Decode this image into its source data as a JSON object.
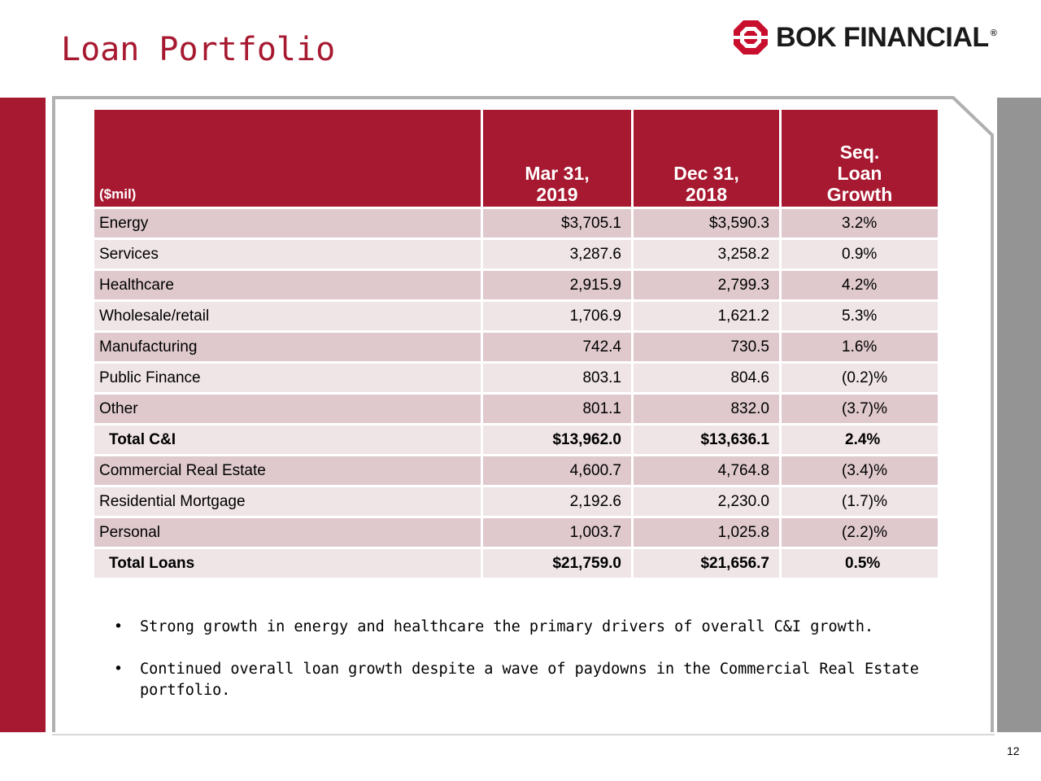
{
  "header": {
    "title": "Loan Portfolio",
    "logo_text": "BOK FINANCIAL",
    "logo_mark": "®"
  },
  "colors": {
    "brand_red": "#a71930",
    "row_dark": "#dfc9cd",
    "row_light": "#efe4e6",
    "gray_bar": "#949494"
  },
  "table": {
    "col_headers": [
      [
        "($mil)"
      ],
      [
        "Mar 31,",
        "2019"
      ],
      [
        "Dec 31,",
        "2018"
      ],
      [
        "Seq.",
        "Loan",
        "Growth"
      ]
    ],
    "rows": [
      {
        "label": "Energy",
        "mar": "$3,705.1",
        "dec": "$3,590.3",
        "growth": "3.2%"
      },
      {
        "label": "Services",
        "mar": "3,287.6",
        "dec": "3,258.2",
        "growth": "0.9%"
      },
      {
        "label": "Healthcare",
        "mar": "2,915.9",
        "dec": "2,799.3",
        "growth": "4.2%"
      },
      {
        "label": "Wholesale/retail",
        "mar": "1,706.9",
        "dec": "1,621.2",
        "growth": "5.3%"
      },
      {
        "label": "Manufacturing",
        "mar": "742.4",
        "dec": "730.5",
        "growth": "1.6%"
      },
      {
        "label": "Public Finance",
        "mar": "803.1",
        "dec": "804.6",
        "growth": "(0.2)%"
      },
      {
        "label": "Other",
        "mar": "801.1",
        "dec": "832.0",
        "growth": "(3.7)%"
      },
      {
        "label": "Total C&I",
        "mar": "$13,962.0",
        "dec": "$13,636.1",
        "growth": "2.4%",
        "total": true
      },
      {
        "label": "Commercial Real Estate",
        "mar": "4,600.7",
        "dec": "4,764.8",
        "growth": "(3.4)%"
      },
      {
        "label": "Residential Mortgage",
        "mar": "2,192.6",
        "dec": "2,230.0",
        "growth": "(1.7)%"
      },
      {
        "label": "Personal",
        "mar": "1,003.7",
        "dec": "1,025.8",
        "growth": "(2.2)%"
      },
      {
        "label": "Total Loans",
        "mar": "$21,759.0",
        "dec": "$21,656.7",
        "growth": "0.5%",
        "total": true
      }
    ]
  },
  "bullets": [
    "Strong growth in energy and healthcare the primary drivers of overall C&I growth.",
    "Continued overall loan growth despite a wave of paydowns in the Commercial Real Estate portfolio."
  ],
  "bullet_glyph": "•",
  "page_number": "12"
}
